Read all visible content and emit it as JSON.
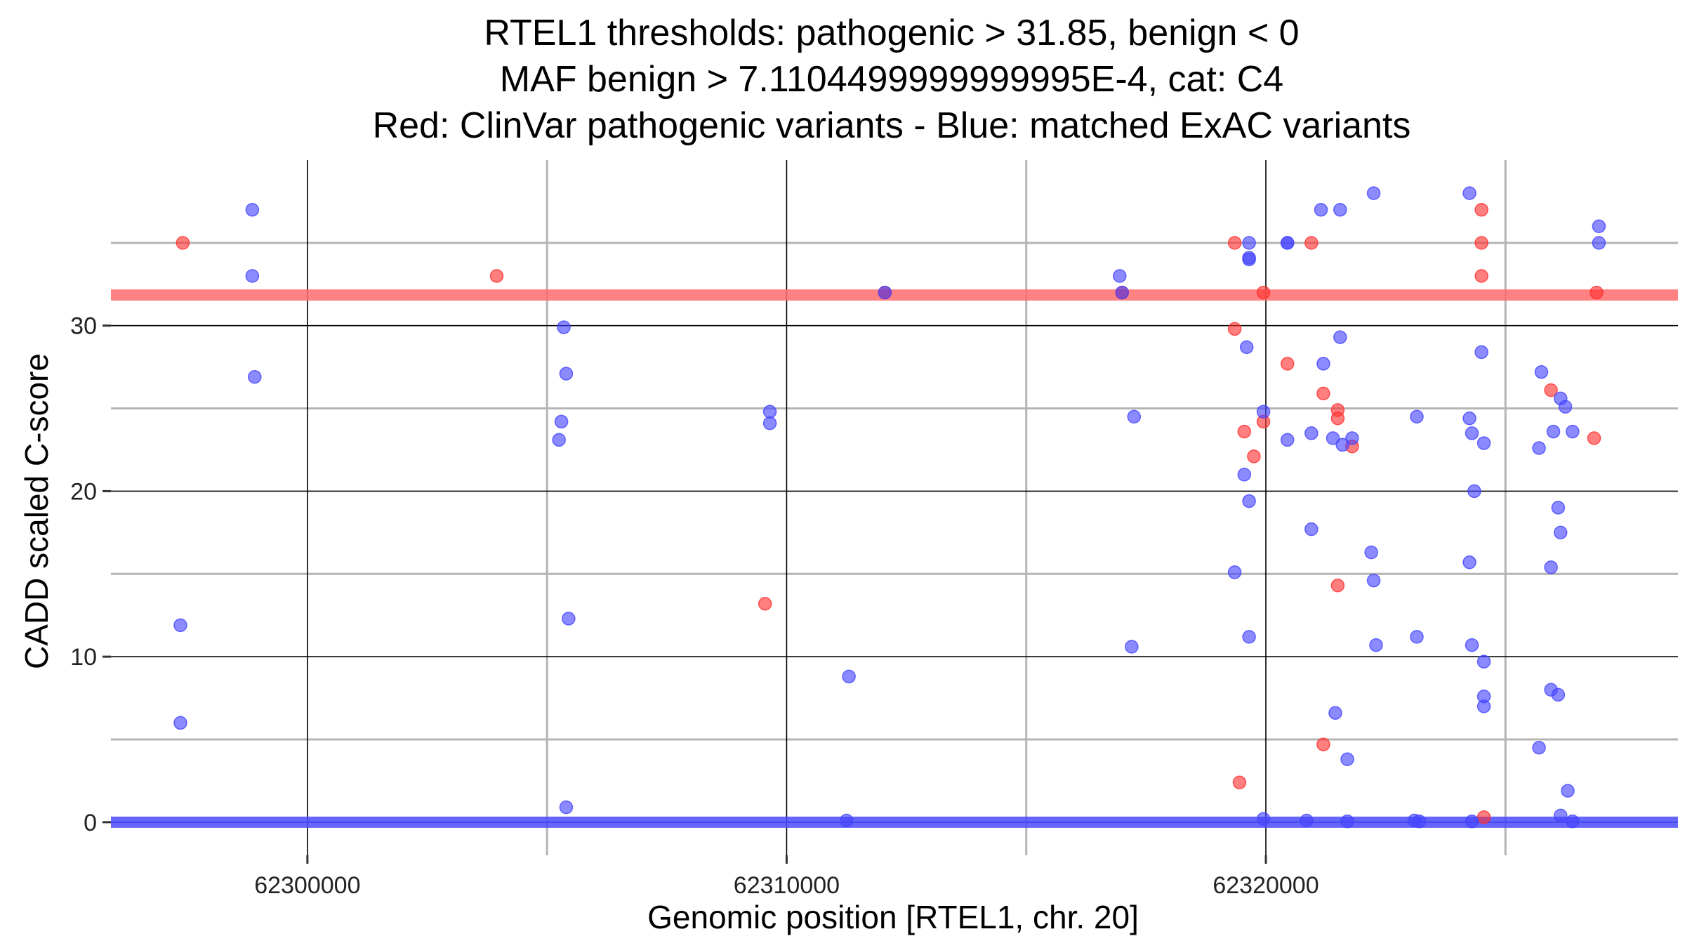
{
  "chart_data": {
    "type": "scatter",
    "title_lines": [
      "RTEL1 thresholds: pathogenic > 31.85, benign < 0",
      "MAF benign > 7.1104499999999995E-4, cat: C4",
      "Red: ClinVar pathogenic variants - Blue: matched ExAC variants"
    ],
    "xlabel": "Genomic position [RTEL1, chr. 20]",
    "ylabel": "CADD scaled C-score",
    "xlim": [
      62295900,
      62328600
    ],
    "ylim": [
      -2,
      40
    ],
    "x_ticks": [
      62300000,
      62310000,
      62320000
    ],
    "x_tick_labels": [
      "62300000",
      "62310000",
      "62320000"
    ],
    "y_ticks": [
      0,
      10,
      20,
      30
    ],
    "y_tick_labels": [
      "0",
      "10",
      "20",
      "30"
    ],
    "grid": true,
    "thresholds": [
      {
        "value": 31.85,
        "color": "#ff6b6b"
      },
      {
        "value": 0,
        "color": "#4a4aff"
      }
    ],
    "series": [
      {
        "color": "#ff3030",
        "points": [
          [
            62297400,
            35
          ],
          [
            62303950,
            33
          ],
          [
            62312050,
            32
          ],
          [
            62309550,
            13.2
          ],
          [
            62317000,
            32
          ],
          [
            62319350,
            35
          ],
          [
            62319350,
            29.8
          ],
          [
            62319550,
            23.6
          ],
          [
            62319450,
            2.4
          ],
          [
            62319750,
            22.1
          ],
          [
            62319950,
            24.2
          ],
          [
            62319950,
            32
          ],
          [
            62320450,
            27.7
          ],
          [
            62320950,
            35
          ],
          [
            62321200,
            4.7
          ],
          [
            62321200,
            25.9
          ],
          [
            62321500,
            24.9
          ],
          [
            62321500,
            24.4
          ],
          [
            62321500,
            14.3
          ],
          [
            62321800,
            22.7
          ],
          [
            62324500,
            37
          ],
          [
            62324500,
            35
          ],
          [
            62324500,
            33
          ],
          [
            62324550,
            0.3
          ],
          [
            62325950,
            26.1
          ],
          [
            62326850,
            23.2
          ],
          [
            62326900,
            32
          ]
        ]
      },
      {
        "color": "#4444ff",
        "points": [
          [
            62297350,
            11.9
          ],
          [
            62297350,
            6
          ],
          [
            62298850,
            37
          ],
          [
            62298850,
            33
          ],
          [
            62298900,
            26.9
          ],
          [
            62305350,
            29.9
          ],
          [
            62305400,
            27.1
          ],
          [
            62305300,
            24.2
          ],
          [
            62305250,
            23.1
          ],
          [
            62305450,
            12.3
          ],
          [
            62305400,
            0.9
          ],
          [
            62309650,
            24.8
          ],
          [
            62309650,
            24.1
          ],
          [
            62311300,
            8.8
          ],
          [
            62311250,
            0.1
          ],
          [
            62312050,
            32
          ],
          [
            62316950,
            33
          ],
          [
            62317000,
            32
          ],
          [
            62317250,
            24.5
          ],
          [
            62317200,
            10.6
          ],
          [
            62319650,
            35
          ],
          [
            62319650,
            34.1
          ],
          [
            62319650,
            34
          ],
          [
            62319350,
            15.1
          ],
          [
            62319600,
            28.7
          ],
          [
            62319550,
            21
          ],
          [
            62319650,
            19.4
          ],
          [
            62319650,
            11.2
          ],
          [
            62319950,
            24.8
          ],
          [
            62319950,
            0.2
          ],
          [
            62320450,
            35
          ],
          [
            62320450,
            35
          ],
          [
            62320450,
            23.1
          ],
          [
            62321150,
            37
          ],
          [
            62321550,
            37
          ],
          [
            62321200,
            27.7
          ],
          [
            62320950,
            23.5
          ],
          [
            62321400,
            23.2
          ],
          [
            62321600,
            22.8
          ],
          [
            62321800,
            23.2
          ],
          [
            62321550,
            29.3
          ],
          [
            62320950,
            17.7
          ],
          [
            62321450,
            6.6
          ],
          [
            62321700,
            3.8
          ],
          [
            62320850,
            0.1
          ],
          [
            62321700,
            0.05
          ],
          [
            62322200,
            16.3
          ],
          [
            62322250,
            14.6
          ],
          [
            62322300,
            10.7
          ],
          [
            62322250,
            38
          ],
          [
            62323150,
            24.5
          ],
          [
            62323150,
            11.2
          ],
          [
            62323100,
            0.1
          ],
          [
            62323200,
            0.05
          ],
          [
            62324250,
            38
          ],
          [
            62324250,
            24.4
          ],
          [
            62324300,
            23.5
          ],
          [
            62324550,
            22.9
          ],
          [
            62324500,
            28.4
          ],
          [
            62324350,
            20
          ],
          [
            62324250,
            15.7
          ],
          [
            62324300,
            10.7
          ],
          [
            62324550,
            9.7
          ],
          [
            62324550,
            7.6
          ],
          [
            62324550,
            7
          ],
          [
            62324300,
            0.05
          ],
          [
            62325750,
            27.2
          ],
          [
            62325700,
            22.6
          ],
          [
            62326000,
            23.6
          ],
          [
            62326150,
            25.6
          ],
          [
            62326250,
            25.1
          ],
          [
            62326400,
            23.6
          ],
          [
            62326100,
            19
          ],
          [
            62326150,
            17.5
          ],
          [
            62325950,
            15.4
          ],
          [
            62325950,
            8
          ],
          [
            62326100,
            7.7
          ],
          [
            62325700,
            4.5
          ],
          [
            62326300,
            1.9
          ],
          [
            62326150,
            0.4
          ],
          [
            62326400,
            0.05
          ],
          [
            62326950,
            36
          ],
          [
            62326950,
            35
          ]
        ]
      }
    ]
  }
}
